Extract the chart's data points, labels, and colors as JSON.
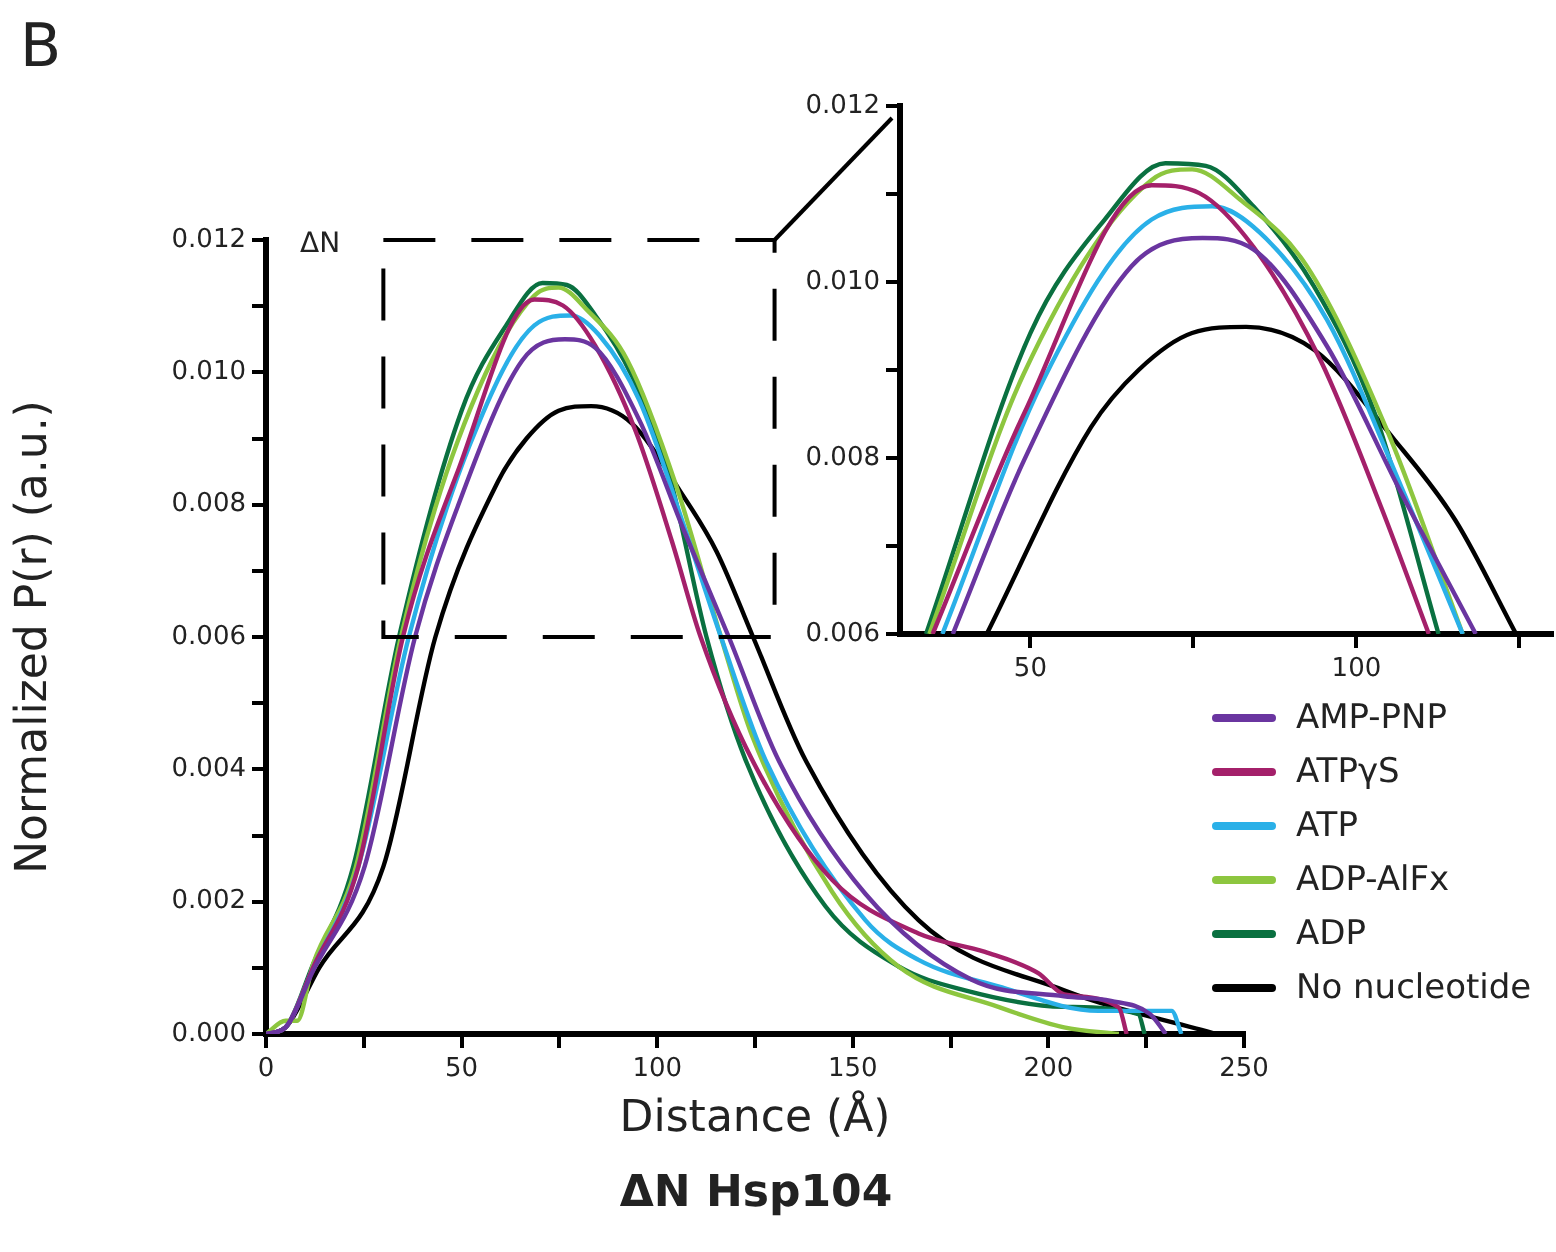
{
  "chart_data": [
    {
      "type": "line",
      "title": "ΔN Hsp104",
      "xlabel": "Distance (Å)",
      "ylabel": "Normalized P(r) (a.u.)",
      "annotations": [
        "B",
        "ΔN"
      ],
      "legend": "right",
      "grid": false,
      "xlim": [
        0,
        250
      ],
      "xticks": [
        0,
        {
          "value": 25,
          "label": null
        },
        50,
        {
          "value": 75,
          "label": null
        },
        100,
        {
          "value": 125,
          "label": null
        },
        150,
        {
          "value": 175,
          "label": null
        },
        200,
        {
          "value": 225,
          "label": null
        },
        250
      ],
      "ylim": [
        0,
        0.012
      ],
      "yticks": [
        {
          "value": 0,
          "label": "0.000"
        },
        {
          "value": 0.001,
          "label": null
        },
        {
          "value": 0.002,
          "label": "0.002"
        },
        {
          "value": 0.003,
          "label": null
        },
        {
          "value": 0.004,
          "label": "0.004"
        },
        {
          "value": 0.005,
          "label": null
        },
        {
          "value": 0.006,
          "label": "0.006"
        },
        {
          "value": 0.007,
          "label": null
        },
        {
          "value": 0.008,
          "label": "0.008"
        },
        {
          "value": 0.009,
          "label": null
        },
        {
          "value": 0.01,
          "label": "0.010"
        },
        {
          "value": 0.011,
          "label": null
        },
        {
          "value": 0.012,
          "label": "0.012"
        }
      ],
      "series": [
        {
          "name": "AMP-PNP",
          "color": "#6a35a0",
          "x": [
            0,
            5,
            12,
            25.2,
            38.1,
            49,
            65.5,
            76.4,
            84.2,
            95.5,
            106.9,
            118.3,
            131,
            153.2,
            180.4,
            204,
            216,
            226,
            230
          ],
          "values": [
            0,
            0.0001,
            0.00095,
            0.00253,
            0.006,
            0.00797,
            0.01018,
            0.0105,
            0.01037,
            0.00927,
            0.0076,
            0.006,
            0.00414,
            0.00212,
            0.00082,
            0.00057,
            0.0005,
            0.0003,
            0
          ]
        },
        {
          "name": "ATPγS",
          "color": "#a4206a",
          "x": [
            0,
            5,
            12,
            23.6,
            35,
            49,
            68.6,
            75.9,
            84.2,
            94.5,
            103.8,
            111.1,
            124.3,
            144.7,
            166.8,
            183.8,
            197.4,
            204,
            218,
            220
          ],
          "values": [
            0,
            0.0001,
            0.001,
            0.00253,
            0.006,
            0.0085,
            0.0111,
            0.01101,
            0.0104,
            0.00911,
            0.00744,
            0.006,
            0.00414,
            0.00233,
            0.00152,
            0.00124,
            0.00092,
            0.0006,
            0.0004,
            0
          ]
        },
        {
          "name": "ATP",
          "color": "#2ab0e8",
          "x": [
            0,
            5,
            12,
            23.6,
            36.5,
            52,
            68.6,
            77.9,
            85.2,
            95.5,
            106.9,
            116.3,
            127.7,
            153.2,
            166.8,
            187.2,
            212.8,
            231.5,
            234
          ],
          "values": [
            0,
            0.0001,
            0.001,
            0.00253,
            0.006,
            0.00889,
            0.01071,
            0.01086,
            0.01056,
            0.00957,
            0.00767,
            0.006,
            0.00414,
            0.00172,
            0.00112,
            0.00072,
            0.00035,
            0.00035,
            0
          ]
        },
        {
          "name": "ADP-AlFx",
          "color": "#8dc63f",
          "x": [
            0,
            5,
            8,
            12,
            23,
            34.5,
            49,
            68.6,
            74.8,
            82.1,
            92.4,
            104.9,
            116.3,
            124.3,
            144.7,
            161.7,
            187.2,
            204,
            218
          ],
          "values": [
            0,
            0.0002,
            0.0002,
            0.00105,
            0.00253,
            0.006,
            0.00896,
            0.01116,
            0.01128,
            0.01094,
            0.01018,
            0.00828,
            0.006,
            0.0045,
            0.00215,
            0.00102,
            0.00041,
            0.0001,
            0
          ]
        },
        {
          "name": "ADP",
          "color": "#0a7040",
          "x": [
            0,
            5,
            12,
            22.3,
            34,
            50,
            61.4,
            70.7,
            76.9,
            84.2,
            93.5,
            102.8,
            112.6,
            122.6,
            143,
            161.7,
            178.7,
            204,
            223,
            224.6
          ],
          "values": [
            0,
            0.0001,
            0.00105,
            0.00253,
            0.006,
            0.00942,
            0.01071,
            0.01135,
            0.01132,
            0.01086,
            0.00995,
            0.00851,
            0.006,
            0.00414,
            0.00193,
            0.00102,
            0.00066,
            0.00041,
            0.0003,
            0
          ]
        },
        {
          "name": "No nucleotide",
          "color": "#000000",
          "x": [
            0,
            5,
            13.6,
            30,
            43.3,
            59.3,
            66.6,
            74.8,
            83.1,
            93.5,
            105.9,
            115.2,
            124.5,
            137.9,
            166.8,
            204,
            243
          ],
          "values": [
            0,
            0.0001,
            0.001,
            0.00253,
            0.006,
            0.00835,
            0.009,
            0.00942,
            0.00949,
            0.00923,
            0.0082,
            0.00729,
            0.006,
            0.00414,
            0.00172,
            0.00066,
            0
          ]
        }
      ]
    },
    {
      "type": "line",
      "grid": false,
      "xlim": [
        30,
        130
      ],
      "xticks": [
        50,
        {
          "value": 75,
          "label": null
        },
        100,
        {
          "value": 125,
          "label": null
        }
      ],
      "ylim": [
        0.006,
        0.012
      ],
      "yticks": [
        {
          "value": 0.006,
          "label": "0.006"
        },
        {
          "value": 0.007,
          "label": null
        },
        {
          "value": 0.008,
          "label": "0.008"
        },
        {
          "value": 0.009,
          "label": null
        },
        {
          "value": 0.01,
          "label": "0.010"
        },
        {
          "value": 0.011,
          "label": null
        },
        {
          "value": 0.012,
          "label": "0.012"
        }
      ],
      "series": [
        {
          "color": "#6a35a0",
          "x": [
            38.1,
            49,
            65.5,
            76.4,
            84.2,
            95.5,
            106.9,
            118.3
          ],
          "values": [
            0.006,
            0.00797,
            0.01018,
            0.0105,
            0.01037,
            0.00927,
            0.0076,
            0.006
          ]
        },
        {
          "color": "#a4206a",
          "x": [
            35,
            49,
            68.6,
            75.9,
            84.2,
            94.5,
            103.8,
            111.1
          ],
          "values": [
            0.006,
            0.0085,
            0.0111,
            0.01101,
            0.0104,
            0.00911,
            0.00744,
            0.006
          ]
        },
        {
          "color": "#2ab0e8",
          "x": [
            36.5,
            52,
            68.6,
            77.9,
            85.2,
            95.5,
            106.9,
            116.3
          ],
          "values": [
            0.006,
            0.00889,
            0.01071,
            0.01086,
            0.01056,
            0.00957,
            0.00767,
            0.006
          ]
        },
        {
          "color": "#8dc63f",
          "x": [
            34.5,
            49,
            68.6,
            74.8,
            82.1,
            92.4,
            104.9,
            116.3
          ],
          "values": [
            0.006,
            0.00896,
            0.01116,
            0.01128,
            0.01094,
            0.01018,
            0.00828,
            0.006
          ]
        },
        {
          "color": "#0a7040",
          "x": [
            34,
            50,
            61.4,
            70.7,
            76.9,
            84.2,
            93.5,
            102.8,
            112.6
          ],
          "values": [
            0.006,
            0.00942,
            0.01071,
            0.01135,
            0.01132,
            0.01086,
            0.00995,
            0.00851,
            0.006
          ]
        },
        {
          "color": "#000000",
          "x": [
            43.3,
            59.3,
            66.6,
            74.8,
            83.1,
            93.5,
            105.9,
            115.2,
            124.5
          ],
          "values": [
            0.006,
            0.00835,
            0.009,
            0.00942,
            0.00949,
            0.00923,
            0.0082,
            0.00729,
            0.006
          ]
        }
      ]
    }
  ]
}
